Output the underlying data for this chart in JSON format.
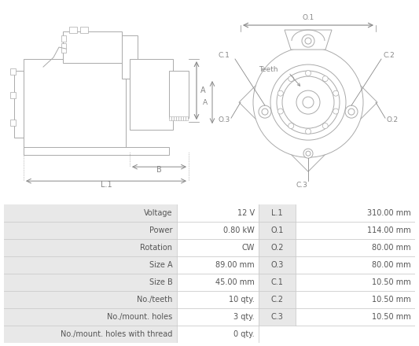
{
  "bg_color": "#ffffff",
  "border_color": "#cccccc",
  "table_header_bg": "#e8e8e8",
  "diagram_line_color": "#aaaaaa",
  "annotation_color": "#888888",
  "text_color": "#555555",
  "table_data": [
    [
      "Voltage",
      "12 V",
      "L.1",
      "310.00 mm"
    ],
    [
      "Power",
      "0.80 kW",
      "O.1",
      "114.00 mm"
    ],
    [
      "Rotation",
      "CW",
      "O.2",
      "80.00 mm"
    ],
    [
      "Size A",
      "89.00 mm",
      "O.3",
      "80.00 mm"
    ],
    [
      "Size B",
      "45.00 mm",
      "C.1",
      "10.50 mm"
    ],
    [
      "No./teeth",
      "10 qty.",
      "C.2",
      "10.50 mm"
    ],
    [
      "No./mount. holes",
      "3 qty.",
      "C.3",
      "10.50 mm"
    ],
    [
      "No./mount. holes with thread",
      "0 qty.",
      "",
      ""
    ]
  ]
}
